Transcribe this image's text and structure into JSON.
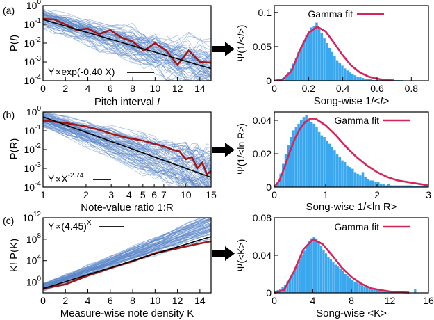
{
  "figure": {
    "panels": [
      "(a)",
      "(b)",
      "(c)"
    ],
    "colors": {
      "bundle": "#5b86c8",
      "highlight": "#a31515",
      "fit": "#000000",
      "bars": "#3aa7ef",
      "gamma": "#d6245a"
    }
  },
  "chart_data": [
    {
      "id": "a-left",
      "type": "line",
      "panel_label": "(a)",
      "title": "",
      "xlabel": "Pitch interval I",
      "ylabel": "P(I)",
      "xlim": [
        0,
        15
      ],
      "ylim_exponent": [
        -4,
        0
      ],
      "scale": {
        "x": "linear",
        "y": "log"
      },
      "x_ticks": [
        0,
        2,
        4,
        6,
        8,
        10,
        12,
        14
      ],
      "y_ticks": [
        "10-4",
        "10-3",
        "10-2",
        "10-1",
        "100"
      ],
      "annotation": "Y∝exp(-0.40 X)",
      "series": [
        {
          "role": "highlight",
          "x": [
            0,
            1,
            2,
            3,
            4,
            5,
            6,
            7,
            8,
            9,
            10,
            11,
            12,
            13,
            14,
            15
          ],
          "y": [
            0.2,
            0.18,
            0.1,
            0.05,
            0.06,
            0.03,
            0.05,
            0.02,
            0.012,
            0.004,
            0.01,
            0.004,
            0.0007,
            0.004,
            0.001,
            0.0009
          ]
        },
        {
          "role": "fit",
          "x": [
            0,
            15
          ],
          "y": [
            0.18,
            0.00044
          ]
        }
      ]
    },
    {
      "id": "b-left",
      "type": "line",
      "panel_label": "(b)",
      "title": "",
      "xlabel": "Note-value ratio 1:R",
      "ylabel": "P(R)",
      "xlim": [
        1,
        15
      ],
      "ylim_exponent": [
        -4,
        0
      ],
      "scale": {
        "x": "log",
        "y": "log"
      },
      "x_ticks": [
        1,
        2,
        3,
        4,
        5,
        6,
        7,
        10,
        15
      ],
      "y_ticks": [
        "10-4",
        "10-3",
        "10-2",
        "10-1",
        "100"
      ],
      "annotation": "Y∝X-2.74",
      "series": [
        {
          "role": "highlight",
          "x": [
            1,
            1.5,
            2,
            2.5,
            3,
            4,
            5,
            6,
            7,
            8,
            9,
            10,
            11,
            12,
            13,
            14,
            15
          ],
          "y": [
            0.35,
            0.25,
            0.17,
            0.11,
            0.07,
            0.04,
            0.03,
            0.02,
            0.015,
            0.01,
            0.008,
            0.003,
            0.004,
            0.001,
            0.002,
            0.0005,
            0.0007
          ]
        },
        {
          "role": "fit",
          "x": [
            1,
            15
          ],
          "y": [
            0.55,
            0.00033
          ]
        }
      ]
    },
    {
      "id": "c-left",
      "type": "line",
      "panel_label": "(c)",
      "title": "",
      "xlabel": "Measure-wise note density K",
      "ylabel": "K! P(K)",
      "xlim": [
        0,
        15
      ],
      "ylim_exponent": [
        -2,
        12
      ],
      "scale": {
        "x": "linear",
        "y": "log"
      },
      "x_ticks": [
        0,
        2,
        4,
        6,
        8,
        10,
        12,
        14
      ],
      "y_ticks": [
        "100",
        "104",
        "108",
        "1012"
      ],
      "annotation": "Y∝(4.45)X",
      "series": [
        {
          "role": "highlight",
          "x": [
            0,
            2,
            4,
            6,
            8,
            10,
            12,
            14,
            15
          ],
          "y_exponent": [
            -1.2,
            -0.4,
            1.2,
            2.6,
            3.9,
            5.4,
            6.3,
            7.2,
            7.6
          ]
        },
        {
          "role": "fit",
          "x": [
            0,
            15
          ],
          "y_exponent": [
            -1.2,
            8.5
          ]
        }
      ]
    },
    {
      "id": "a-right",
      "type": "bar",
      "title": "",
      "xlabel": "Song-wise 1/<I>",
      "ylabel": "Ψ(1/<I>)",
      "xlim": [
        0,
        0.9
      ],
      "ylim": [
        0,
        0.11
      ],
      "x_ticks": [
        0,
        0.2,
        0.4,
        0.6,
        0.8
      ],
      "y_ticks": [
        0,
        0.05,
        0.1
      ],
      "legend": {
        "label": "Gamma fit",
        "position": "top-right"
      },
      "bins": {
        "start": 0,
        "width": 0.015,
        "values": [
          0.001,
          0.002,
          0.003,
          0.004,
          0.008,
          0.012,
          0.018,
          0.025,
          0.033,
          0.042,
          0.05,
          0.058,
          0.066,
          0.073,
          0.078,
          0.08,
          0.085,
          0.078,
          0.07,
          0.062,
          0.055,
          0.048,
          0.042,
          0.036,
          0.03,
          0.026,
          0.022,
          0.018,
          0.015,
          0.012,
          0.01,
          0.008,
          0.006,
          0.005,
          0.004,
          0.003,
          0.002,
          0.002,
          0.001,
          0.001,
          0.001,
          0.001,
          0.001,
          0.001,
          0.001,
          0.001,
          0.001,
          0.001,
          0.001,
          0.001
        ]
      },
      "gamma_fit": {
        "x": [
          0,
          0.05,
          0.1,
          0.15,
          0.2,
          0.25,
          0.3,
          0.35,
          0.4,
          0.45,
          0.5,
          0.55,
          0.6,
          0.65,
          0.7
        ],
        "y": [
          0,
          0.002,
          0.014,
          0.045,
          0.07,
          0.079,
          0.072,
          0.055,
          0.037,
          0.022,
          0.012,
          0.006,
          0.003,
          0.001,
          0.0004
        ]
      }
    },
    {
      "id": "b-right",
      "type": "bar",
      "title": "",
      "xlabel": "Song-wise 1/<ln R>",
      "ylabel": "Ψ(1/<ln R>)",
      "xlim": [
        0,
        3
      ],
      "ylim": [
        0,
        0.045
      ],
      "x_ticks": [
        0,
        1,
        2,
        3
      ],
      "y_ticks": [
        0,
        0.02,
        0.04
      ],
      "legend": {
        "label": "Gamma fit",
        "position": "top-right"
      },
      "bins": {
        "start": 0,
        "width": 0.05,
        "values": [
          0.001,
          0.003,
          0.008,
          0.014,
          0.02,
          0.025,
          0.03,
          0.034,
          0.036,
          0.038,
          0.04,
          0.042,
          0.043,
          0.04,
          0.039,
          0.038,
          0.036,
          0.033,
          0.031,
          0.03,
          0.028,
          0.026,
          0.024,
          0.022,
          0.02,
          0.018,
          0.016,
          0.015,
          0.013,
          0.012,
          0.011,
          0.009,
          0.008,
          0.007,
          0.009,
          0.006,
          0.005,
          0.004,
          0.004,
          0.003,
          0.003,
          0.002,
          0.002,
          0.001,
          0.002,
          0.001,
          0.001,
          0.001,
          0.001,
          0.001,
          0.001,
          0.001,
          0.001,
          0.001,
          0.0005,
          0.0005,
          0.0005,
          0.0005,
          0.0005,
          0.0005
        ]
      },
      "gamma_fit": {
        "x": [
          0,
          0.1,
          0.2,
          0.3,
          0.4,
          0.5,
          0.6,
          0.7,
          0.8,
          0.9,
          1.0,
          1.2,
          1.4,
          1.6,
          1.8,
          2.0,
          2.2,
          2.4,
          2.6,
          2.8,
          3.0
        ],
        "y": [
          0,
          0.004,
          0.012,
          0.021,
          0.029,
          0.035,
          0.039,
          0.041,
          0.041,
          0.039,
          0.037,
          0.031,
          0.024,
          0.018,
          0.013,
          0.009,
          0.006,
          0.004,
          0.003,
          0.002,
          0.001
        ]
      }
    },
    {
      "id": "c-right",
      "type": "bar",
      "title": "",
      "xlabel": "Song-wise <K>",
      "ylabel": "Ψ(<K>)",
      "xlim": [
        0,
        16
      ],
      "ylim": [
        0,
        0.08
      ],
      "x_ticks": [
        0,
        4,
        8,
        12,
        16
      ],
      "y_ticks": [
        0,
        0.04,
        0.08
      ],
      "legend": {
        "label": "Gamma fit",
        "position": "top-right"
      },
      "bins": {
        "start": 0,
        "width": 0.25,
        "values": [
          0.002,
          0.003,
          0.004,
          0.006,
          0.008,
          0.012,
          0.015,
          0.02,
          0.026,
          0.03,
          0.036,
          0.04,
          0.045,
          0.05,
          0.055,
          0.058,
          0.06,
          0.058,
          0.055,
          0.05,
          0.046,
          0.042,
          0.038,
          0.036,
          0.033,
          0.03,
          0.028,
          0.026,
          0.023,
          0.02,
          0.018,
          0.016,
          0.014,
          0.012,
          0.011,
          0.01,
          0.008,
          0.007,
          0.006,
          0.005,
          0.005,
          0.004,
          0.003,
          0.003,
          0.002,
          0.002,
          0.002,
          0.001,
          0.001,
          0.001,
          0.001,
          0.001,
          0.001,
          0.001,
          0.001,
          0,
          0,
          0,
          0.004,
          0,
          0,
          0,
          0,
          0
        ]
      },
      "gamma_fit": {
        "x": [
          0,
          1,
          2,
          3,
          4,
          5,
          6,
          7,
          8,
          9,
          10,
          11,
          12,
          13,
          14
        ],
        "y": [
          0,
          0.003,
          0.022,
          0.046,
          0.057,
          0.052,
          0.04,
          0.027,
          0.017,
          0.01,
          0.005,
          0.003,
          0.0015,
          0.0007,
          0.0003
        ]
      }
    }
  ]
}
